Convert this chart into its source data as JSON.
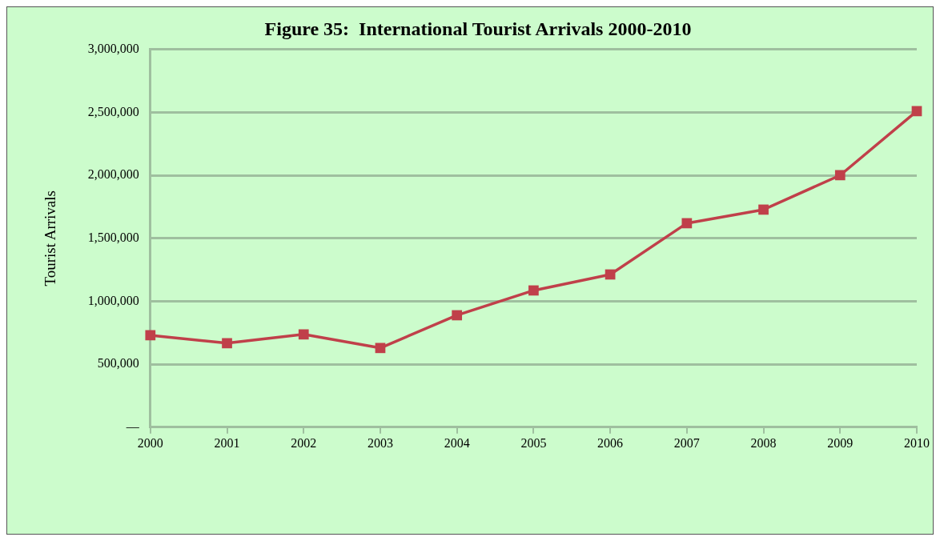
{
  "chart_data": {
    "type": "line",
    "title": "Figure 35:  International Tourist Arrivals 2000-2010",
    "ylabel": "Tourist Arrivals",
    "categories": [
      "2000",
      "2001",
      "2002",
      "2003",
      "2004",
      "2005",
      "2006",
      "2007",
      "2008",
      "2009",
      "2010"
    ],
    "series": [
      {
        "color": "#c0404a",
        "values": [
          730000,
          667000,
          737000,
          629000,
          889000,
          1086000,
          1213000,
          1620000,
          1728000,
          2001000,
          2510000
        ]
      }
    ],
    "ylim": [
      0,
      3000000
    ],
    "yticks": [
      {
        "value": 0,
        "label": "—"
      },
      {
        "value": 500000,
        "label": "500,000"
      },
      {
        "value": 1000000,
        "label": "1,000,000"
      },
      {
        "value": 1500000,
        "label": "1,500,000"
      },
      {
        "value": 2000000,
        "label": "2,000,000"
      },
      {
        "value": 2500000,
        "label": "2,500,000"
      },
      {
        "value": 3000000,
        "label": "3,000,000"
      }
    ],
    "grid": "y",
    "legend": false,
    "marker": "square",
    "line_style": "solid"
  }
}
